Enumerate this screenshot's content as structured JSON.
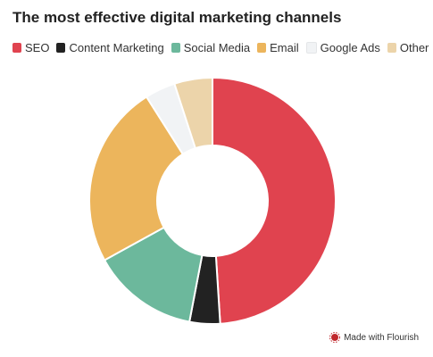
{
  "chart_data": {
    "type": "donut",
    "title": "The most effective digital marketing channels",
    "categories": [
      "SEO",
      "Content Marketing",
      "Social Media",
      "Email",
      "Google Ads",
      "Other"
    ],
    "values": [
      49,
      4,
      14,
      24,
      4,
      5
    ],
    "colors": [
      "#e0434f",
      "#222222",
      "#6cb89c",
      "#ecb55c",
      "#f1f3f5",
      "#ecd4aa"
    ],
    "footer": "Made with Flourish"
  }
}
